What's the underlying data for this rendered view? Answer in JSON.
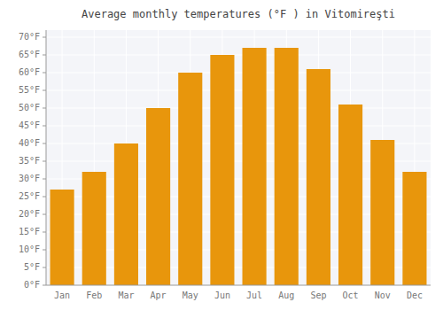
{
  "chart_data": {
    "type": "bar",
    "title": "Average monthly temperatures (°F ) in Vitomireşti",
    "categories": [
      "Jan",
      "Feb",
      "Mar",
      "Apr",
      "May",
      "Jun",
      "Jul",
      "Aug",
      "Sep",
      "Oct",
      "Nov",
      "Dec"
    ],
    "values": [
      27,
      32,
      40,
      50,
      60,
      65,
      67,
      67,
      61,
      51,
      41,
      32
    ],
    "color": "#E8960C",
    "ylim": [
      0,
      72
    ],
    "yticks": [
      {
        "value": 0,
        "label": "0°F"
      },
      {
        "value": 5,
        "label": "5°F"
      },
      {
        "value": 10,
        "label": "10°F"
      },
      {
        "value": 15,
        "label": "15°F"
      },
      {
        "value": 20,
        "label": "20°F"
      },
      {
        "value": 25,
        "label": "25°F"
      },
      {
        "value": 30,
        "label": "30°F"
      },
      {
        "value": 35,
        "label": "35°F"
      },
      {
        "value": 40,
        "label": "40°F"
      },
      {
        "value": 45,
        "label": "45°F"
      },
      {
        "value": 50,
        "label": "50°F"
      },
      {
        "value": 55,
        "label": "55°F"
      },
      {
        "value": 60,
        "label": "60°F"
      },
      {
        "value": 65,
        "label": "65°F"
      },
      {
        "value": 70,
        "label": "70°F"
      }
    ],
    "grid": true
  }
}
